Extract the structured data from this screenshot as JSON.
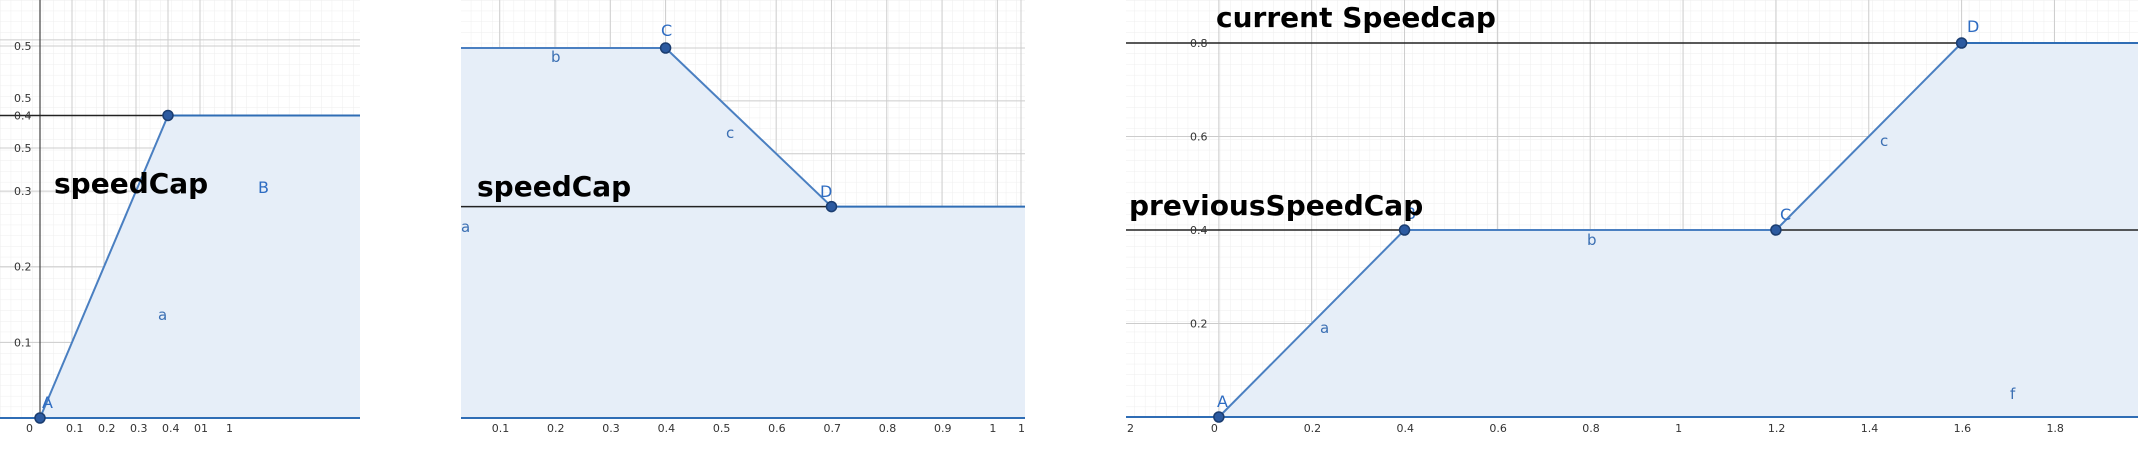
{
  "colors": {
    "fill": "#e6eef8",
    "line": "#4a7fc1",
    "axis_line": "#2f6db5",
    "cap_line": "#222222",
    "point": "#2c5aa0"
  },
  "chart_data": [
    {
      "type": "area",
      "title": "",
      "annotation": "speedCap",
      "xlim": [
        0,
        1
      ],
      "ylim": [
        0,
        0.55
      ],
      "x_ticks": [
        "0",
        "0.1",
        "0.2",
        "0.3",
        "0.4",
        "01",
        "1"
      ],
      "y_ticks": [
        "0.1",
        "0.2",
        "0.3",
        "0.4",
        "0.5",
        "0.5",
        "0.5"
      ],
      "cap_value": 0.4,
      "points": [
        {
          "name": "A",
          "x": 0,
          "y": 0
        },
        {
          "name": "B",
          "x": 0.4,
          "y": 0.4
        }
      ],
      "segments": [
        {
          "name": "a",
          "from": "A",
          "to": "B"
        }
      ],
      "grid": true
    },
    {
      "type": "area",
      "title": "",
      "annotation": "speedCap",
      "xlim": [
        0.03,
        1.05
      ],
      "ylim": [
        0,
        0.7
      ],
      "x_ticks": [
        "0.1",
        "0.2",
        "0.3",
        "0.4",
        "0.5",
        "0.6",
        "0.7",
        "0.8",
        "0.9",
        "1",
        "1"
      ],
      "cap_value": 0.4,
      "points": [
        {
          "name": "C",
          "x": 0.4,
          "y": 0.7
        },
        {
          "name": "D",
          "x": 0.7,
          "y": 0.4
        }
      ],
      "segments": [
        {
          "name": "a",
          "from": "left",
          "to": "left"
        },
        {
          "name": "b",
          "from": "left",
          "to": "C"
        },
        {
          "name": "c",
          "from": "C",
          "to": "D"
        }
      ],
      "grid": true
    },
    {
      "type": "area",
      "title": "",
      "annotations": [
        "current Speedcap",
        "previousSpeedCap"
      ],
      "xlim": [
        -0.2,
        1.98
      ],
      "ylim": [
        0,
        0.8
      ],
      "x_ticks": [
        "2",
        "0",
        "0.2",
        "0.4",
        "0.6",
        "0.8",
        "1",
        "1.2",
        "1.4",
        "1.6",
        "1.8"
      ],
      "y_ticks": [
        "0.2",
        "0.4",
        "0.6",
        "0.8"
      ],
      "current_cap": 0.8,
      "previous_cap": 0.4,
      "points": [
        {
          "name": "A",
          "x": 0,
          "y": 0
        },
        {
          "name": "B",
          "x": 0.4,
          "y": 0.4
        },
        {
          "name": "C",
          "x": 1.2,
          "y": 0.4
        },
        {
          "name": "D",
          "x": 1.6,
          "y": 0.8
        }
      ],
      "segments": [
        {
          "name": "a",
          "from": "A",
          "to": "B"
        },
        {
          "name": "b",
          "from": "B",
          "to": "C"
        },
        {
          "name": "c",
          "from": "C",
          "to": "D"
        },
        {
          "name": "f",
          "from": "A",
          "to": "right"
        }
      ],
      "grid": true
    }
  ]
}
